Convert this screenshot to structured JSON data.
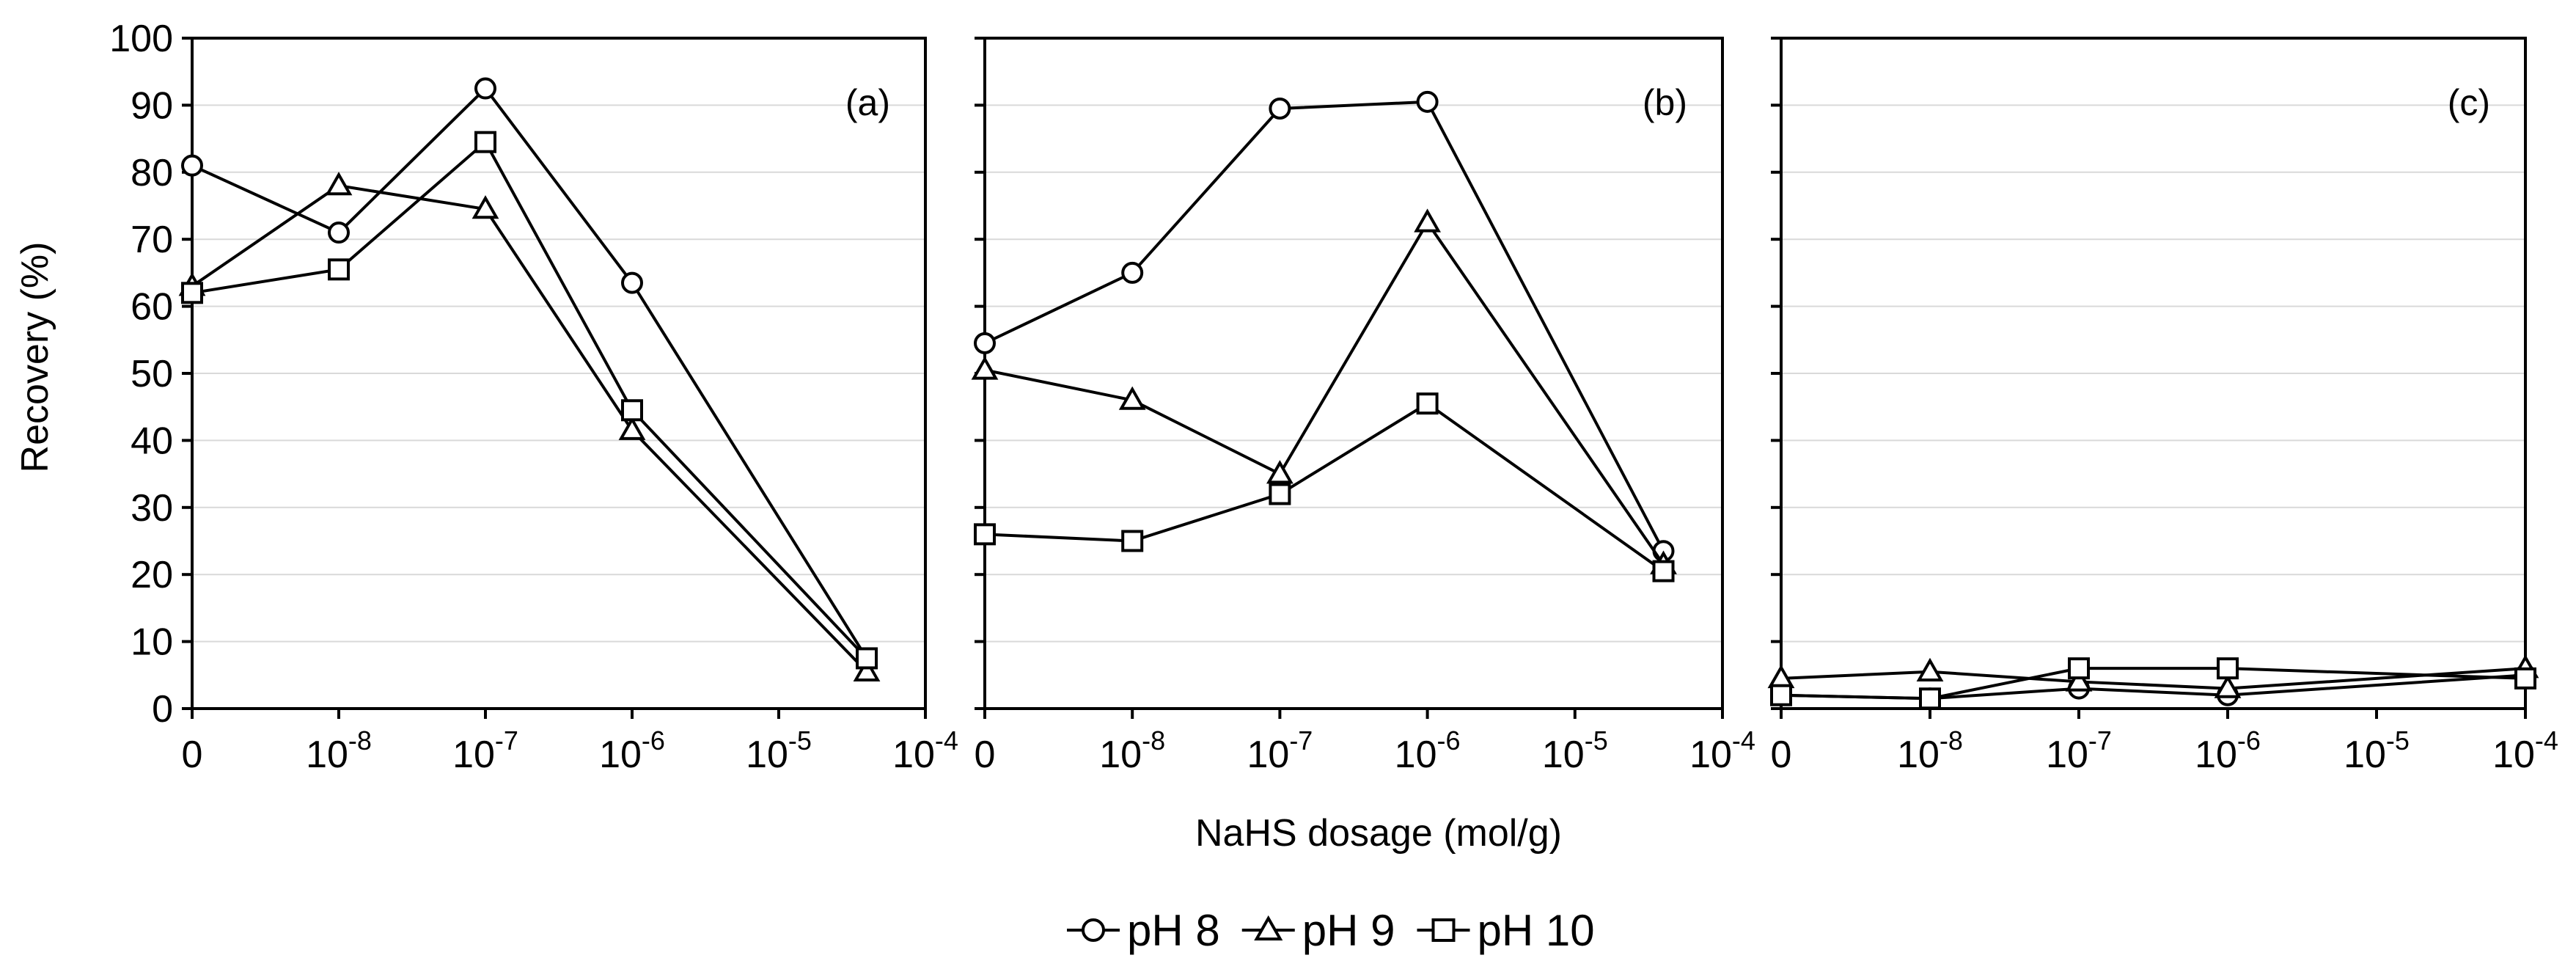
{
  "chart_data": {
    "type": "line",
    "shared_xlabel": "NaHS dosage (mol/g)",
    "shared_ylabel": "Recovery (%)",
    "ylim": [
      0,
      100
    ],
    "y_ticks": [
      "0",
      "10",
      "20",
      "30",
      "40",
      "50",
      "60",
      "70",
      "80",
      "90",
      "100"
    ],
    "x_ticks": [
      {
        "base": "0",
        "exp": ""
      },
      {
        "base": "10",
        "exp": "-8"
      },
      {
        "base": "10",
        "exp": "-7"
      },
      {
        "base": "10",
        "exp": "-6"
      },
      {
        "base": "10",
        "exp": "-5"
      },
      {
        "base": "10",
        "exp": "-4"
      }
    ],
    "legend": [
      {
        "name": "pH 8",
        "marker": "circle"
      },
      {
        "name": "pH 9",
        "marker": "triangle"
      },
      {
        "name": "pH 10",
        "marker": "square"
      }
    ],
    "panels": [
      {
        "label": "(a)",
        "series": [
          {
            "name": "pH 8",
            "x": [
              0,
              1,
              2,
              3,
              4.6
            ],
            "values": [
              81,
              71,
              92.5,
              63.5,
              7.5
            ]
          },
          {
            "name": "pH 9",
            "x": [
              0,
              1,
              2,
              3,
              4.6
            ],
            "values": [
              63,
              78,
              74.5,
              41.5,
              5.5
            ]
          },
          {
            "name": "pH 10",
            "x": [
              0,
              1,
              2,
              3,
              4.6
            ],
            "values": [
              62,
              65.5,
              84.5,
              44.5,
              7.5
            ]
          }
        ]
      },
      {
        "label": "(b)",
        "series": [
          {
            "name": "pH 8",
            "x": [
              0,
              1,
              2,
              3,
              4.6
            ],
            "values": [
              54.5,
              65,
              89.5,
              90.5,
              23.5
            ]
          },
          {
            "name": "pH 9",
            "x": [
              0,
              1,
              2,
              3,
              4.6
            ],
            "values": [
              50.5,
              46,
              35,
              72.5,
              21.5
            ]
          },
          {
            "name": "pH 10",
            "x": [
              0,
              1,
              2,
              3,
              4.6
            ],
            "values": [
              26,
              25,
              32,
              45.5,
              20.5
            ]
          }
        ]
      },
      {
        "label": "(c)",
        "series": [
          {
            "name": "pH 8",
            "x": [
              0,
              1,
              2,
              3,
              5
            ],
            "values": [
              2,
              1.5,
              3,
              2,
              5
            ]
          },
          {
            "name": "pH 9",
            "x": [
              0,
              1,
              2,
              3,
              5
            ],
            "values": [
              4.5,
              5.5,
              4,
              3,
              6
            ]
          },
          {
            "name": "pH 10",
            "x": [
              0,
              1,
              2,
              3,
              5
            ],
            "values": [
              2,
              1.5,
              6,
              6,
              4.5
            ]
          }
        ]
      }
    ]
  }
}
